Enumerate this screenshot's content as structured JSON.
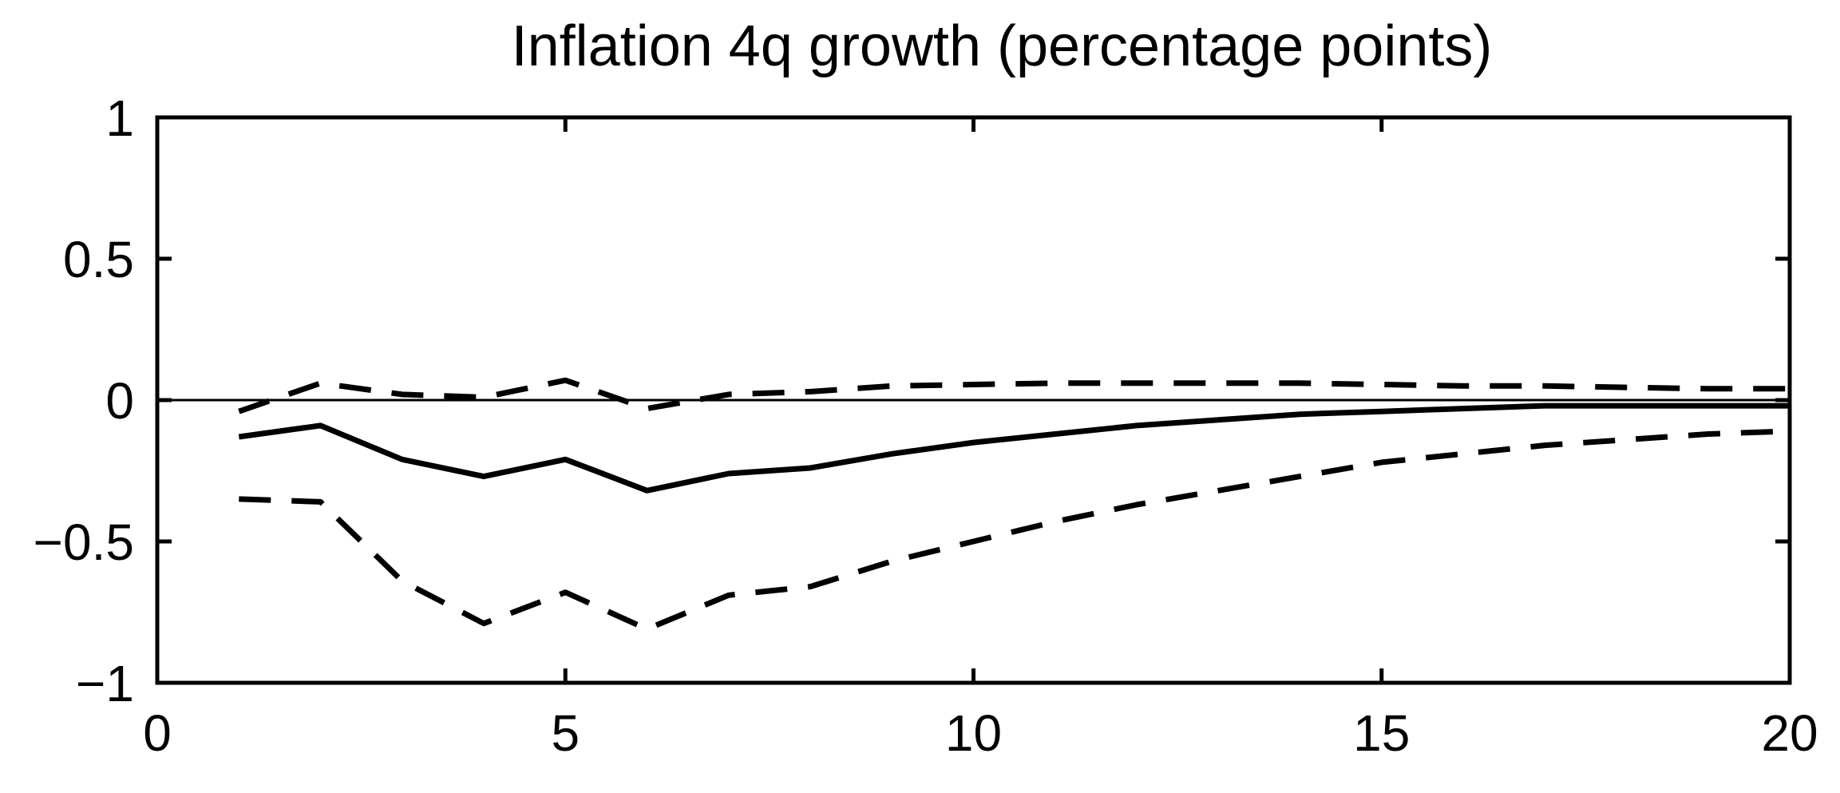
{
  "chart_data": {
    "type": "line",
    "title": "Inflation 4q growth (percentage points)",
    "xlabel": "",
    "ylabel": "",
    "xlim": [
      0,
      20
    ],
    "ylim": [
      -1,
      1
    ],
    "xticks": [
      0,
      5,
      10,
      15,
      20
    ],
    "xtick_labels": [
      "0",
      "5",
      "10",
      "15",
      "20"
    ],
    "yticks": [
      1,
      0.5,
      0,
      -0.5,
      -1
    ],
    "ytick_labels": [
      "1",
      "0.5",
      "0",
      "−0.5",
      "−1"
    ],
    "grid": false,
    "zero_line": true,
    "x": [
      1,
      2,
      3,
      4,
      5,
      6,
      7,
      8,
      9,
      10,
      11,
      12,
      13,
      14,
      15,
      16,
      17,
      18,
      19,
      20
    ],
    "series": [
      {
        "style": "solid",
        "values": [
          -0.13,
          -0.09,
          -0.21,
          -0.27,
          -0.21,
          -0.32,
          -0.26,
          -0.24,
          -0.19,
          -0.15,
          -0.12,
          -0.09,
          -0.07,
          -0.05,
          -0.04,
          -0.03,
          -0.02,
          -0.02,
          -0.02,
          -0.02
        ]
      },
      {
        "style": "dashed",
        "values": [
          -0.04,
          0.06,
          0.02,
          0.01,
          0.07,
          -0.03,
          0.02,
          0.03,
          0.05,
          0.055,
          0.06,
          0.06,
          0.06,
          0.06,
          0.055,
          0.05,
          0.05,
          0.045,
          0.04,
          0.04
        ]
      },
      {
        "style": "dashed",
        "values": [
          -0.35,
          -0.36,
          -0.64,
          -0.79,
          -0.68,
          -0.81,
          -0.69,
          -0.66,
          -0.57,
          -0.5,
          -0.43,
          -0.37,
          -0.32,
          -0.27,
          -0.22,
          -0.19,
          -0.16,
          -0.14,
          -0.12,
          -0.11
        ]
      }
    ]
  },
  "colors": {
    "line": "#000000",
    "background": "#ffffff"
  }
}
